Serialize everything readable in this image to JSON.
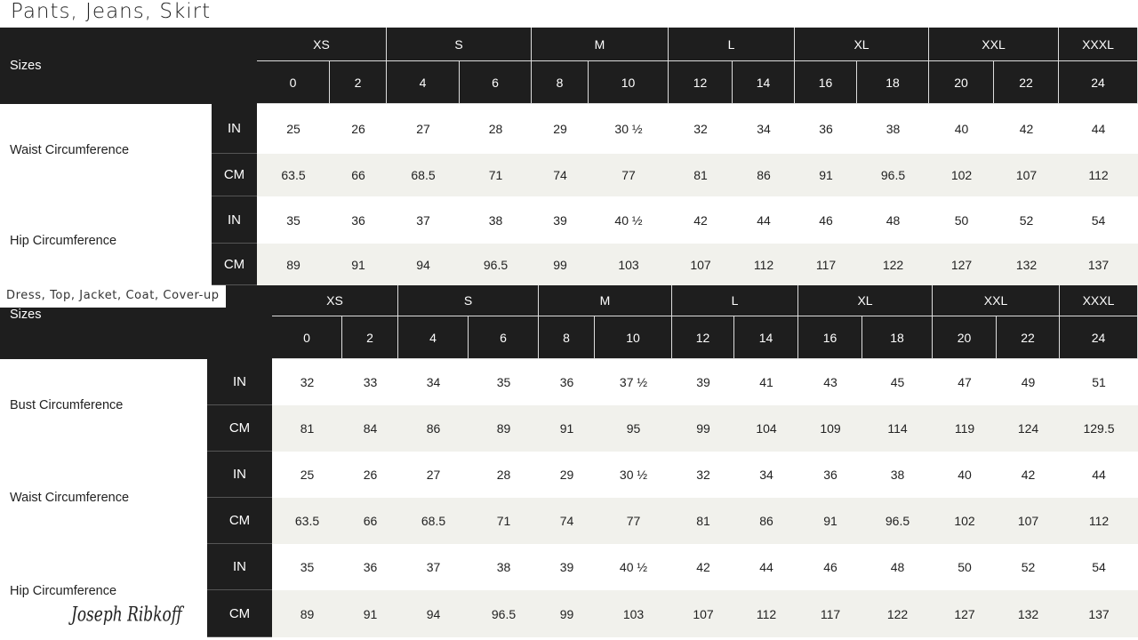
{
  "tables": [
    {
      "title": "Pants, Jeans, Skirt",
      "sizes_label": "Sizes",
      "groups": [
        "XS",
        "S",
        "M",
        "L",
        "XL",
        "XXL",
        "XXXL"
      ],
      "sizes": [
        "0",
        "2",
        "4",
        "6",
        "8",
        "10",
        "12",
        "14",
        "16",
        "18",
        "20",
        "22",
        "24"
      ],
      "measurements": [
        {
          "name": "Waist Circumference",
          "rows": [
            {
              "unit": "IN",
              "values": [
                "25",
                "26",
                "27",
                "28",
                "29",
                "30 ½",
                "32",
                "34",
                "36",
                "38",
                "40",
                "42",
                "44"
              ]
            },
            {
              "unit": "CM",
              "values": [
                "63.5",
                "66",
                "68.5",
                "71",
                "74",
                "77",
                "81",
                "86",
                "91",
                "96.5",
                "102",
                "107",
                "112"
              ]
            }
          ]
        },
        {
          "name": "Hip Circumference",
          "rows": [
            {
              "unit": "IN",
              "values": [
                "35",
                "36",
                "37",
                "38",
                "39",
                "40 ½",
                "42",
                "44",
                "46",
                "48",
                "50",
                "52",
                "54"
              ]
            },
            {
              "unit": "CM",
              "values": [
                "89",
                "91",
                "94",
                "96.5",
                "99",
                "103",
                "107",
                "112",
                "117",
                "122",
                "127",
                "132",
                "137"
              ]
            }
          ]
        }
      ]
    },
    {
      "title": "Dress, Top, Jacket, Coat, Cover-up",
      "sizes_label": "Sizes",
      "groups": [
        "XS",
        "S",
        "M",
        "L",
        "XL",
        "XXL",
        "XXXL"
      ],
      "sizes": [
        "0",
        "2",
        "4",
        "6",
        "8",
        "10",
        "12",
        "14",
        "16",
        "18",
        "20",
        "22",
        "24"
      ],
      "measurements": [
        {
          "name": "Bust Circumference",
          "rows": [
            {
              "unit": "IN",
              "values": [
                "32",
                "33",
                "34",
                "35",
                "36",
                "37 ½",
                "39",
                "41",
                "43",
                "45",
                "47",
                "49",
                "51"
              ]
            },
            {
              "unit": "CM",
              "values": [
                "81",
                "84",
                "86",
                "89",
                "91",
                "95",
                "99",
                "104",
                "109",
                "114",
                "119",
                "124",
                "129.5"
              ]
            }
          ]
        },
        {
          "name": "Waist Circumference",
          "rows": [
            {
              "unit": "IN",
              "values": [
                "25",
                "26",
                "27",
                "28",
                "29",
                "30 ½",
                "32",
                "34",
                "36",
                "38",
                "40",
                "42",
                "44"
              ]
            },
            {
              "unit": "CM",
              "values": [
                "63.5",
                "66",
                "68.5",
                "71",
                "74",
                "77",
                "81",
                "86",
                "91",
                "96.5",
                "102",
                "107",
                "112"
              ]
            }
          ]
        },
        {
          "name": "Hip Circumference",
          "rows": [
            {
              "unit": "IN",
              "values": [
                "35",
                "36",
                "37",
                "38",
                "39",
                "40 ½",
                "42",
                "44",
                "46",
                "48",
                "50",
                "52",
                "54"
              ]
            },
            {
              "unit": "CM",
              "values": [
                "89",
                "91",
                "94",
                "96.5",
                "99",
                "103",
                "107",
                "112",
                "117",
                "122",
                "127",
                "132",
                "137"
              ]
            }
          ]
        }
      ]
    }
  ],
  "brand": "Joseph Ribkoff"
}
